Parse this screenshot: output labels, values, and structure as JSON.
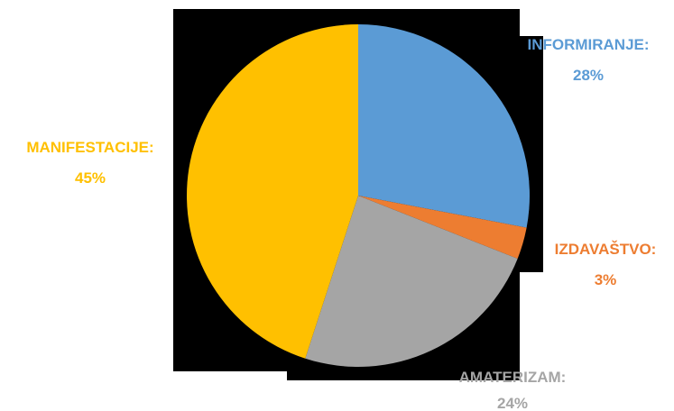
{
  "chart_data": {
    "type": "pie",
    "title": "",
    "start_angle_deg": 0,
    "direction": "clockwise",
    "slices": [
      {
        "label": "INFORMIRANJE:",
        "value": 28,
        "value_label": "28%",
        "color": "#5B9BD5"
      },
      {
        "label": "IZDAVAŠTVO:",
        "value": 3,
        "value_label": "3%",
        "color": "#ED7D31"
      },
      {
        "label": "AMATERIZAM:",
        "value": 24,
        "value_label": "24%",
        "color": "#A5A5A5"
      },
      {
        "label": "MANIFESTACIJE:",
        "value": 45,
        "value_label": "45%",
        "color": "#FFC000"
      }
    ],
    "legend": "none",
    "plot_background": "#000000"
  }
}
